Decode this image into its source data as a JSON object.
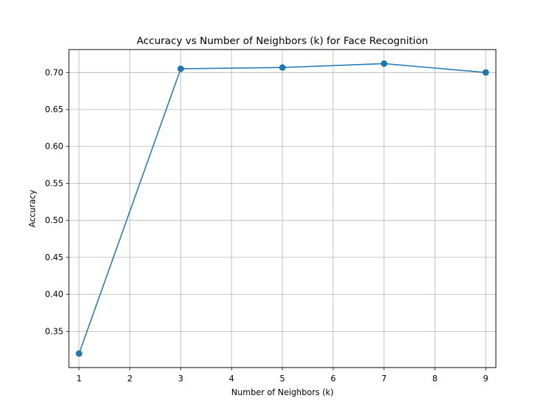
{
  "chart_data": {
    "type": "line",
    "title": "Accuracy vs Number of Neighbors (k) for Face Recognition",
    "xlabel": "Number of Neighbors (k)",
    "ylabel": "Accuracy",
    "x": [
      1,
      3,
      5,
      7,
      9
    ],
    "series": [
      {
        "values": [
          0.32,
          0.705,
          0.7067,
          0.712,
          0.7
        ]
      }
    ],
    "xlim": [
      0.8,
      9.2
    ],
    "ylim": [
      0.301,
      0.731
    ],
    "xticks": [
      1,
      2,
      3,
      4,
      5,
      6,
      7,
      8,
      9
    ],
    "yticks": [
      0.35,
      0.4,
      0.45,
      0.5,
      0.55,
      0.6,
      0.65,
      0.7
    ],
    "ytick_labels": [
      "0.35",
      "0.40",
      "0.45",
      "0.50",
      "0.55",
      "0.60",
      "0.65",
      "0.70"
    ],
    "grid": true,
    "markers": true,
    "colors": {
      "line": "#1f77b4",
      "grid": "#b0b0b0",
      "axis": "#000000"
    }
  }
}
